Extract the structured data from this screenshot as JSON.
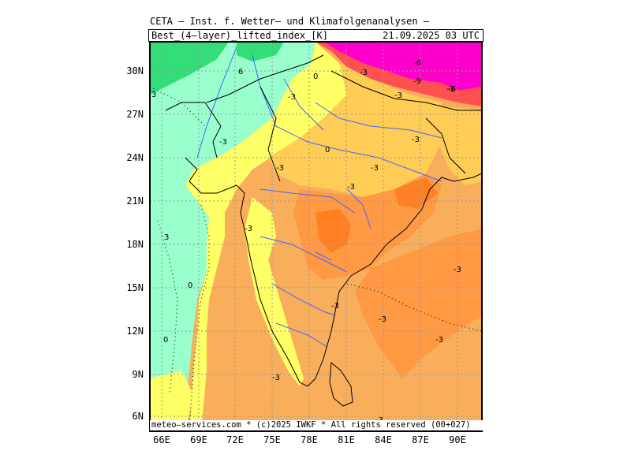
{
  "header": {
    "title": "CETA – Inst. f. Wetter– und Klimafolgenanalysen –",
    "parameter": "Best_(4–layer)_lifted_index_[K]",
    "valid_time": "21.09.2025 03 UTC"
  },
  "footer": {
    "credit": "meteo–services.com * (c)2025 IWKF * All rights reserved (00+027)"
  },
  "axes": {
    "y_ticks": [
      "30N",
      "27N",
      "24N",
      "21N",
      "18N",
      "15N",
      "12N",
      "9N",
      "6N"
    ],
    "x_ticks": [
      "66E",
      "69E",
      "72E",
      "75E",
      "78E",
      "81E",
      "84E",
      "87E",
      "90E"
    ]
  },
  "contour_labels": [
    "-3",
    "0",
    "-3",
    "-6",
    "-9",
    "-6",
    "-3",
    "-3",
    "-3",
    "0",
    "-3",
    "-3",
    "-3",
    "-3",
    "-3",
    "-3",
    "-3",
    "-3",
    "-3",
    "-3",
    "3",
    "0",
    "0",
    "6",
    "3",
    "-3"
  ],
  "colors": {
    "very_stable": "#33dd77",
    "stable": "#99ffcc",
    "neutral": "#ffff66",
    "weak_unstable": "#ffcc55",
    "moderate_unstable": "#f9ae5c",
    "unstable": "#ff9944",
    "strong_unstable": "#ff7f22",
    "very_unstable": "#ff5050",
    "extreme_unstable": "#ff00cc",
    "coastline": "#000000",
    "rivers": "#4466ff",
    "grid": "#999999"
  }
}
